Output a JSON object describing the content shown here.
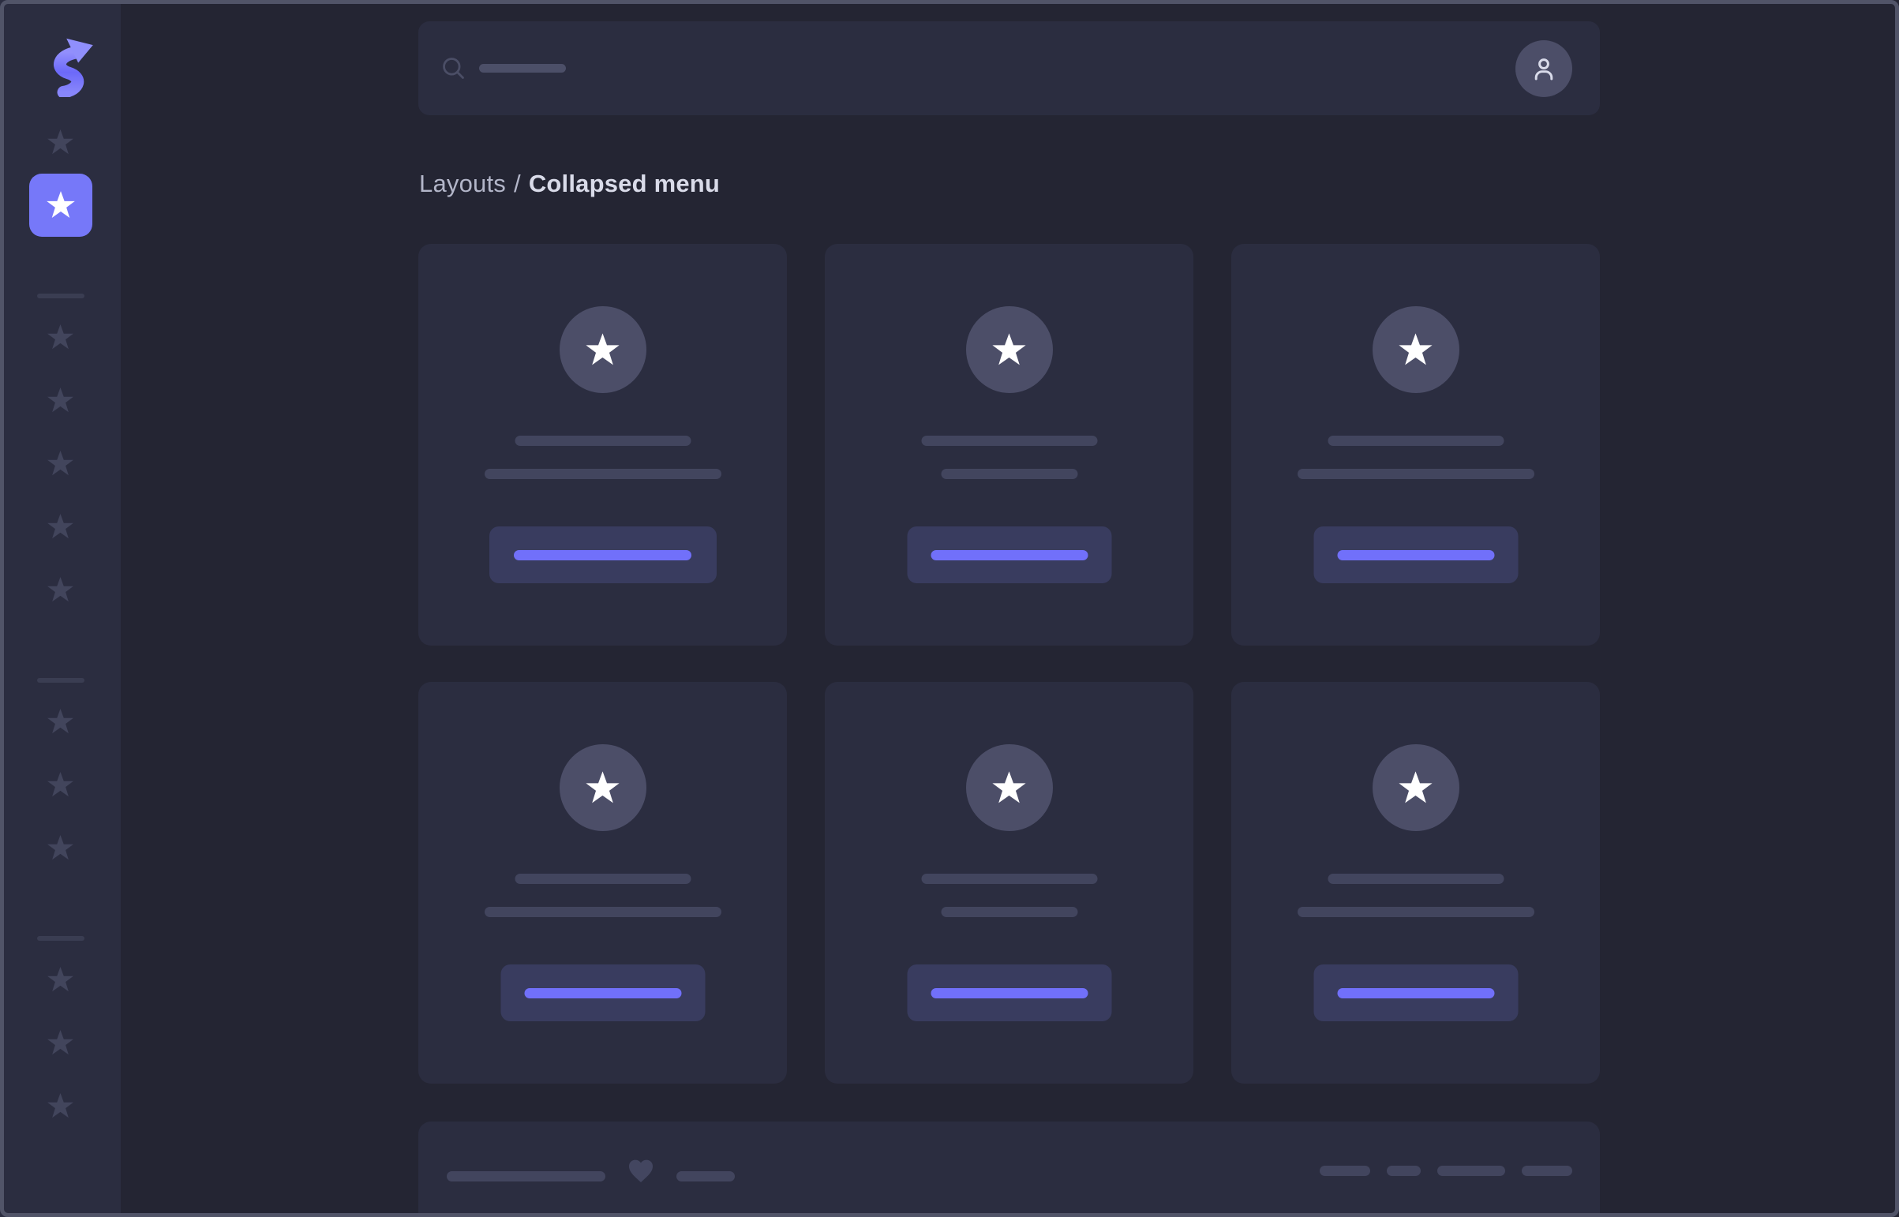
{
  "breadcrumb": {
    "section": "Layouts",
    "separator": "/",
    "current": "Collapsed menu"
  },
  "topbar": {
    "search_icon": "search-icon",
    "search_value": "",
    "search_placeholder": "",
    "avatar_icon": "user-icon"
  },
  "sidebar": {
    "logo_icon": "logo-s-arrow-icon",
    "groups": [
      {
        "items": [
          {
            "icon": "star-icon",
            "active": false
          },
          {
            "icon": "star-icon",
            "active": true
          }
        ]
      },
      {
        "items": [
          {
            "icon": "star-icon"
          },
          {
            "icon": "star-icon"
          },
          {
            "icon": "star-icon"
          },
          {
            "icon": "star-icon"
          },
          {
            "icon": "star-icon"
          }
        ]
      },
      {
        "items": [
          {
            "icon": "star-icon"
          },
          {
            "icon": "star-icon"
          },
          {
            "icon": "star-icon"
          }
        ]
      },
      {
        "items": [
          {
            "icon": "star-icon"
          },
          {
            "icon": "star-icon"
          },
          {
            "icon": "star-icon"
          }
        ]
      }
    ]
  },
  "cards": [
    {
      "icon": "star-icon",
      "title_placeholder": true,
      "subtitle_placeholder": "wide",
      "button": "wide"
    },
    {
      "icon": "star-icon",
      "title_placeholder": true,
      "subtitle_placeholder": "narrow",
      "button": "narrow"
    },
    {
      "icon": "star-icon",
      "title_placeholder": true,
      "subtitle_placeholder": "wide",
      "button": "narrow"
    },
    {
      "icon": "star-icon",
      "title_placeholder": true,
      "subtitle_placeholder": "wide",
      "button": "narrow"
    },
    {
      "icon": "star-icon",
      "title_placeholder": true,
      "subtitle_placeholder": "narrow",
      "button": "narrow"
    },
    {
      "icon": "star-icon",
      "title_placeholder": true,
      "subtitle_placeholder": "wide",
      "button": "narrow"
    }
  ],
  "footer": {
    "heart_icon": "heart-icon",
    "left_line_widths": [
      201,
      74
    ],
    "right_dash_widths": [
      64,
      43,
      86,
      64
    ]
  },
  "colors": {
    "frame": "#515468",
    "bg": "#242533",
    "panel": "#2b2d40",
    "star": "#42455c",
    "divider": "#3a3d52",
    "active": "#7678f9",
    "circle": "#4c4e68",
    "line": "#42455e",
    "linelight": "#4c4f68",
    "btn": "#393c5f",
    "accent": "#7170fa",
    "textdim": "#b3b6c9",
    "textbright": "#d9dbe9",
    "icondim": "#4b4e66",
    "iconlight": "#d9dbea",
    "heart": "#434660",
    "logo_main": "#7b79fb",
    "logo_light": "#908ffc",
    "star_active": "#ffffff"
  }
}
